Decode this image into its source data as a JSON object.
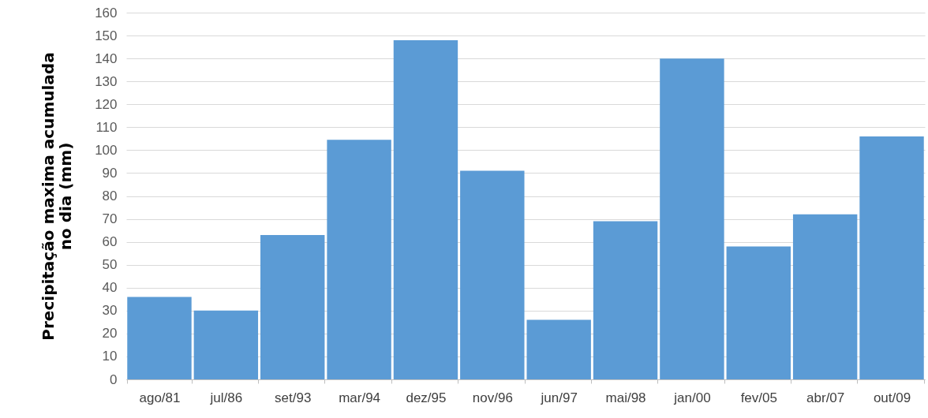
{
  "chart_data": {
    "type": "bar",
    "ylabel": "Precipitação maxima acumulada no dia (mm)",
    "categories": [
      "ago/81",
      "jul/86",
      "set/93",
      "mar/94",
      "dez/95",
      "nov/96",
      "jun/97",
      "mai/98",
      "jan/00",
      "fev/05",
      "abr/07",
      "out/09"
    ],
    "values": [
      36,
      30,
      63,
      104.5,
      148,
      91,
      26,
      69,
      140,
      58,
      72,
      106
    ],
    "color": "#5b9bd5",
    "ylim": [
      0,
      160
    ],
    "yticks": [
      0,
      10,
      20,
      30,
      40,
      50,
      60,
      70,
      80,
      90,
      100,
      110,
      120,
      130,
      140,
      150,
      160
    ],
    "grid": "y"
  }
}
